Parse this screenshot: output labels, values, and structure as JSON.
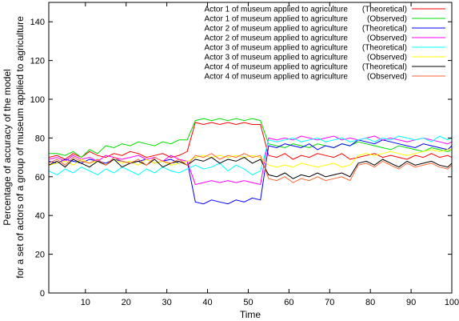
{
  "chart_data": {
    "type": "line",
    "title": "",
    "xlabel": "Time",
    "ylabel_line1": "Percentage of accuracy of the model",
    "ylabel_line2": "for a set of actors of a group of museum applied to agriculture",
    "xlim": [
      1,
      100
    ],
    "ylim": [
      0,
      150
    ],
    "x_ticks": [
      10,
      20,
      30,
      40,
      50,
      60,
      70,
      80,
      90,
      100
    ],
    "y_ticks": [
      0,
      20,
      40,
      60,
      80,
      100,
      120,
      140
    ],
    "grid": false,
    "legend_position": "top-right",
    "x": [
      1,
      3,
      5,
      7,
      9,
      11,
      13,
      15,
      17,
      19,
      21,
      23,
      25,
      27,
      29,
      31,
      33,
      35,
      37,
      39,
      41,
      43,
      45,
      47,
      49,
      51,
      53,
      55,
      57,
      59,
      61,
      63,
      65,
      67,
      69,
      71,
      73,
      75,
      77,
      79,
      81,
      83,
      85,
      87,
      89,
      91,
      93,
      95,
      97,
      99,
      100
    ],
    "series": [
      {
        "name": "Actor 1 of museum applied to agriculture",
        "kind": "(Theoretical)",
        "color": "#ff0000",
        "values": [
          70,
          71,
          69,
          72,
          70,
          73,
          71,
          70,
          72,
          71,
          73,
          72,
          70,
          71,
          72,
          70,
          71,
          73,
          88,
          87,
          88,
          87,
          88,
          87,
          88,
          87,
          87,
          71,
          70,
          72,
          69,
          71,
          70,
          72,
          71,
          70,
          72,
          69,
          70,
          71,
          72,
          70,
          71,
          70,
          69,
          71,
          70,
          72,
          70,
          71,
          70
        ]
      },
      {
        "name": "Actor 1 of museum applied to agriculture",
        "kind": "(Observed)",
        "color": "#00dd00",
        "values": [
          72,
          72,
          71,
          73,
          70,
          74,
          72,
          76,
          75,
          77,
          76,
          78,
          77,
          76,
          78,
          77,
          79,
          79,
          89,
          90,
          89,
          90,
          89,
          90,
          89,
          90,
          89,
          77,
          76,
          75,
          77,
          76,
          75,
          77,
          76,
          75,
          77,
          76,
          78,
          77,
          76,
          75,
          74,
          76,
          75,
          74,
          73,
          75,
          74,
          73,
          74
        ]
      },
      {
        "name": "Actor 2 of museum applied to agriculture",
        "kind": "(Theoretical)",
        "color": "#0000ff",
        "values": [
          68,
          67,
          69,
          68,
          67,
          69,
          68,
          67,
          69,
          68,
          67,
          68,
          69,
          67,
          68,
          69,
          67,
          68,
          47,
          46,
          48,
          47,
          46,
          48,
          47,
          49,
          48,
          76,
          75,
          77,
          76,
          75,
          77,
          74,
          76,
          75,
          77,
          76,
          79,
          78,
          77,
          79,
          78,
          77,
          76,
          75,
          77,
          76,
          75,
          74,
          76
        ]
      },
      {
        "name": "Actor 2 of museum applied to agriculture",
        "kind": "(Observed)",
        "color": "#ff00ff",
        "values": [
          69,
          70,
          68,
          71,
          69,
          70,
          68,
          71,
          70,
          69,
          70,
          71,
          69,
          70,
          68,
          71,
          69,
          68,
          56,
          57,
          58,
          57,
          58,
          57,
          58,
          57,
          56,
          80,
          79,
          80,
          79,
          81,
          80,
          79,
          80,
          81,
          79,
          80,
          79,
          80,
          81,
          79,
          80,
          79,
          78,
          79,
          80,
          79,
          78,
          77,
          78
        ]
      },
      {
        "name": "Actor 3 of museum applied to agriculture",
        "kind": "(Theoretical)",
        "color": "#00ffff",
        "values": [
          63,
          61,
          64,
          62,
          65,
          63,
          61,
          64,
          62,
          65,
          63,
          61,
          64,
          62,
          65,
          63,
          62,
          64,
          66,
          64,
          65,
          67,
          63,
          66,
          64,
          61,
          63,
          79,
          78,
          79,
          80,
          78,
          79,
          80,
          78,
          79,
          80,
          78,
          79,
          80,
          78,
          80,
          79,
          81,
          80,
          79,
          80,
          78,
          81,
          79,
          80
        ]
      },
      {
        "name": "Actor 3 of museum applied to agriculture",
        "kind": "(Observed)",
        "color": "#ffff00",
        "values": [
          66,
          67,
          68,
          66,
          69,
          67,
          68,
          66,
          69,
          67,
          68,
          66,
          69,
          67,
          68,
          66,
          67,
          68,
          70,
          71,
          70,
          71,
          70,
          71,
          70,
          71,
          70,
          66,
          65,
          66,
          65,
          67,
          66,
          65,
          66,
          67,
          65,
          66,
          71,
          72,
          71,
          72,
          73,
          72,
          71,
          72,
          73,
          74,
          73,
          74,
          74
        ]
      },
      {
        "name": "Actor 4 of museum applied to agriculture",
        "kind": "(Theoretical)",
        "color": "#000000",
        "values": [
          66,
          68,
          65,
          69,
          67,
          65,
          68,
          66,
          69,
          65,
          67,
          68,
          66,
          69,
          65,
          67,
          68,
          66,
          69,
          68,
          70,
          67,
          69,
          68,
          70,
          67,
          69,
          61,
          60,
          62,
          59,
          61,
          60,
          62,
          60,
          61,
          62,
          60,
          67,
          68,
          66,
          69,
          67,
          65,
          68,
          66,
          67,
          68,
          66,
          65,
          67
        ]
      },
      {
        "name": "Actor 4 of museum applied to agriculture",
        "kind": "(Observed)",
        "color": "#ff6633",
        "values": [
          67,
          69,
          66,
          70,
          68,
          67,
          69,
          66,
          70,
          68,
          67,
          69,
          66,
          70,
          68,
          67,
          69,
          66,
          71,
          70,
          72,
          69,
          71,
          70,
          72,
          70,
          71,
          59,
          58,
          60,
          57,
          59,
          58,
          60,
          58,
          59,
          60,
          58,
          66,
          67,
          65,
          68,
          66,
          64,
          67,
          65,
          66,
          67,
          65,
          64,
          66
        ]
      }
    ]
  }
}
